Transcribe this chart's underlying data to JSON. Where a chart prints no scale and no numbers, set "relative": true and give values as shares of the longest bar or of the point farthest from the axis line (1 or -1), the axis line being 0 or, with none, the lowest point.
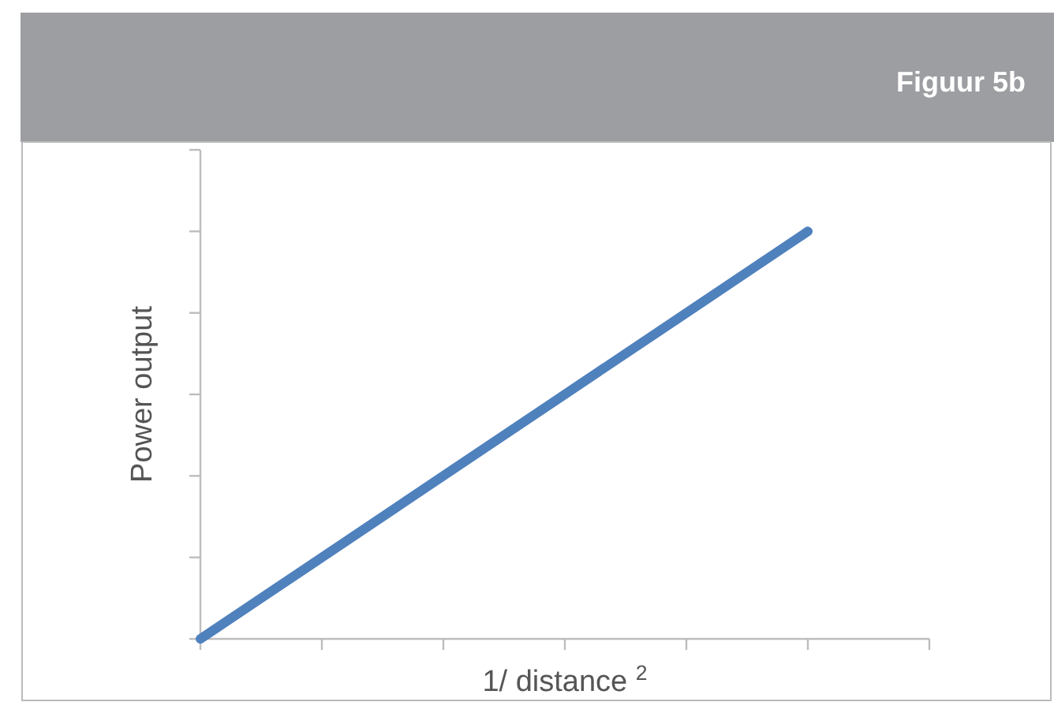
{
  "chart_data": {
    "type": "line",
    "title": "Figuur 5b",
    "xlabel": "1/ distance $^{2}$",
    "ylabel": "Power output",
    "relative": true,
    "categories": [
      null,
      null,
      null,
      null,
      null,
      null,
      null
    ],
    "series": [
      {
        "color": "#4f81bd",
        "values": [
          0,
          0.2,
          0.4,
          0.6,
          0.8,
          1,
          null
        ]
      }
    ],
    "grid": false,
    "marker": "none",
    "line_style": "solid"
  }
}
